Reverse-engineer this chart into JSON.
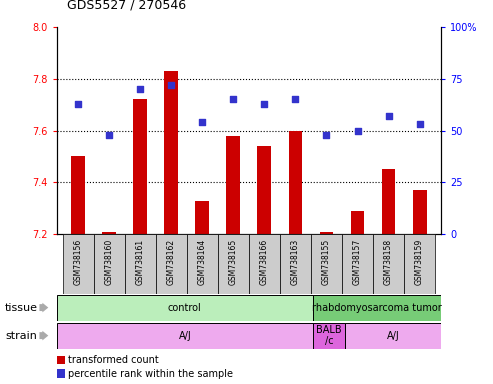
{
  "title": "GDS5527 / 270546",
  "samples": [
    "GSM738156",
    "GSM738160",
    "GSM738161",
    "GSM738162",
    "GSM738164",
    "GSM738165",
    "GSM738166",
    "GSM738163",
    "GSM738155",
    "GSM738157",
    "GSM738158",
    "GSM738159"
  ],
  "red_values": [
    7.5,
    7.21,
    7.72,
    7.83,
    7.33,
    7.58,
    7.54,
    7.6,
    7.21,
    7.29,
    7.45,
    7.37
  ],
  "blue_values": [
    63,
    48,
    70,
    72,
    54,
    65,
    63,
    65,
    48,
    50,
    57,
    53
  ],
  "ylim_left": [
    7.2,
    8.0
  ],
  "ylim_right": [
    0,
    100
  ],
  "yticks_left": [
    7.2,
    7.4,
    7.6,
    7.8,
    8.0
  ],
  "yticks_right": [
    0,
    25,
    50,
    75,
    100
  ],
  "ytick_labels_right": [
    "0",
    "25",
    "50",
    "75",
    "100%"
  ],
  "bar_color": "#cc0000",
  "dot_color": "#3333cc",
  "tissue_groups": [
    {
      "label": "control",
      "start": 0,
      "end": 8,
      "color": "#bbeebb"
    },
    {
      "label": "rhabdomyosarcoma tumor",
      "start": 8,
      "end": 12,
      "color": "#77cc77"
    }
  ],
  "strain_groups": [
    {
      "label": "A/J",
      "start": 0,
      "end": 8,
      "color": "#eeaaee"
    },
    {
      "label": "BALB\n/c",
      "start": 8,
      "end": 9,
      "color": "#dd66dd"
    },
    {
      "label": "A/J",
      "start": 9,
      "end": 12,
      "color": "#eeaaee"
    }
  ],
  "legend_red": "transformed count",
  "legend_blue": "percentile rank within the sample",
  "xlabel_tissue": "tissue",
  "xlabel_strain": "strain",
  "bg_color": "#ffffff",
  "tick_label_bg": "#cccccc",
  "arrow_color": "#aaaaaa"
}
